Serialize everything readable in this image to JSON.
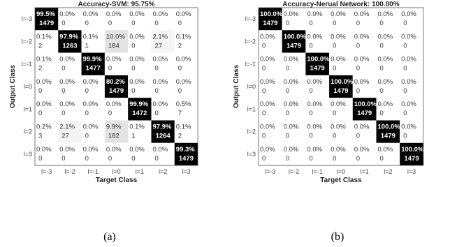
{
  "chart_data": [
    {
      "type": "heatmap",
      "title": "Accuracy-SVM: 95.75%",
      "xlabel": "Target Class",
      "ylabel": "Output Class",
      "x_categories": [
        "l=-3",
        "l=-2",
        "l=-1",
        "l=0",
        "l=1",
        "l=2",
        "l=3"
      ],
      "y_categories": [
        "l=-3",
        "l=-2",
        "l=-1",
        "l=0",
        "l=1",
        "l=2",
        "l=3"
      ],
      "percent": [
        [
          "99.5%",
          "0.0%",
          "0.0%",
          "0.0%",
          "0.0%",
          "0.0%",
          "0.0%"
        ],
        [
          "0.1%",
          "97.9%",
          "0.1%",
          "10.0%",
          "0.0%",
          "2.1%",
          "0.1%"
        ],
        [
          "0.1%",
          "0.0%",
          "99.9%",
          "0.0%",
          "0.0%",
          "0.0%",
          "0.0%"
        ],
        [
          "0.0%",
          "0.0%",
          "0.0%",
          "80.2%",
          "0.0%",
          "0.0%",
          "0.0%"
        ],
        [
          "0.0%",
          "0.0%",
          "0.0%",
          "0.0%",
          "99.9%",
          "0.0%",
          "0.5%"
        ],
        [
          "0.2%",
          "2.1%",
          "0.0%",
          "9.9%",
          "0.1%",
          "97.9%",
          "0.1%"
        ],
        [
          "0.0%",
          "0.0%",
          "0.0%",
          "0.0%",
          "0.0%",
          "0.0%",
          "99.3%"
        ]
      ],
      "counts": [
        [
          1479,
          0,
          0,
          0,
          0,
          0,
          0
        ],
        [
          2,
          1263,
          1,
          184,
          0,
          27,
          2
        ],
        [
          2,
          0,
          1477,
          0,
          0,
          0,
          0
        ],
        [
          0,
          0,
          0,
          1479,
          0,
          0,
          0
        ],
        [
          0,
          0,
          0,
          0,
          1472,
          0,
          7
        ],
        [
          3,
          27,
          0,
          182,
          1,
          1264,
          2
        ],
        [
          0,
          0,
          0,
          0,
          0,
          0,
          1479
        ]
      ],
      "caption": "(a)"
    },
    {
      "type": "heatmap",
      "title": "Accuracy-Nerual Network: 100.00%",
      "xlabel": "Target Class",
      "ylabel": "Output Class",
      "x_categories": [
        "l=-3",
        "l=-2",
        "l=-1",
        "l=0",
        "l=1",
        "l=2",
        "l=3"
      ],
      "y_categories": [
        "l=-3",
        "l=-2",
        "l=-1",
        "l=0",
        "l=1",
        "l=2",
        "l=3"
      ],
      "percent": [
        [
          "100.0%",
          "0.0%",
          "0.0%",
          "0.0%",
          "0.0%",
          "0.0%",
          "0.0%"
        ],
        [
          "0.0%",
          "100.0%",
          "0.0%",
          "0.0%",
          "0.0%",
          "0.0%",
          "0.0%"
        ],
        [
          "0.0%",
          "0.0%",
          "100.0%",
          "0.0%",
          "0.0%",
          "0.0%",
          "0.0%"
        ],
        [
          "0.0%",
          "0.0%",
          "0.0%",
          "100.0%",
          "0.0%",
          "0.0%",
          "0.0%"
        ],
        [
          "0.0%",
          "0.0%",
          "0.0%",
          "0.0%",
          "100.0%",
          "0.0%",
          "0.0%"
        ],
        [
          "0.0%",
          "0.0%",
          "0.0%",
          "0.0%",
          "0.0%",
          "100.0%",
          "0.0%"
        ],
        [
          "0.0%",
          "0.0%",
          "0.0%",
          "0.0%",
          "0.0%",
          "0.0%",
          "100.0%"
        ]
      ],
      "counts": [
        [
          1479,
          0,
          0,
          0,
          0,
          0,
          0
        ],
        [
          0,
          1479,
          0,
          0,
          0,
          0,
          0
        ],
        [
          0,
          0,
          1479,
          0,
          0,
          0,
          0
        ],
        [
          0,
          0,
          0,
          1479,
          0,
          0,
          0
        ],
        [
          0,
          0,
          0,
          0,
          1479,
          0,
          0
        ],
        [
          0,
          0,
          0,
          0,
          0,
          1479,
          0
        ],
        [
          0,
          0,
          0,
          0,
          0,
          0,
          1479
        ]
      ],
      "caption": "(b)"
    }
  ]
}
